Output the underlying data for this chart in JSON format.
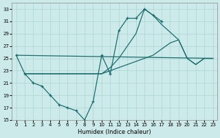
{
  "xlabel": "Humidex (Indice chaleur)",
  "bg_color": "#cceaea",
  "grid_color": "#aad4d4",
  "line_color": "#1a6b6b",
  "xlim": [
    -0.5,
    23.5
  ],
  "ylim": [
    15,
    34
  ],
  "yticks": [
    15,
    17,
    19,
    21,
    23,
    25,
    27,
    29,
    31,
    33
  ],
  "xticks": [
    0,
    1,
    2,
    3,
    4,
    5,
    6,
    7,
    8,
    9,
    10,
    11,
    12,
    13,
    14,
    15,
    16,
    17,
    18,
    19,
    20,
    21,
    22,
    23
  ],
  "line1_x": [
    0,
    1,
    2,
    3,
    4,
    5,
    6,
    7,
    8,
    9,
    10,
    11,
    12,
    13,
    14,
    15,
    16,
    17
  ],
  "line1_y": [
    25.5,
    22.5,
    21.0,
    20.5,
    19.0,
    17.5,
    17.0,
    16.5,
    15.0,
    18.0,
    25.5,
    22.5,
    29.5,
    31.5,
    31.5,
    33.0,
    32.0,
    31.0
  ],
  "line2_x": [
    0,
    23
  ],
  "line2_y": [
    25.5,
    25.0
  ],
  "line3_x": [
    1,
    10,
    11,
    12,
    13,
    14,
    15,
    16,
    17,
    18,
    19,
    20,
    21,
    22,
    23
  ],
  "line3_y": [
    22.5,
    22.5,
    23.0,
    23.5,
    24.0,
    24.5,
    25.0,
    25.5,
    26.5,
    27.5,
    28.0,
    25.0,
    24.0,
    25.0,
    25.0
  ],
  "line4_x": [
    1,
    10,
    11,
    12,
    13,
    14,
    15,
    16,
    17,
    19,
    20,
    21,
    22,
    23
  ],
  "line4_y": [
    22.5,
    22.5,
    23.5,
    25.0,
    27.0,
    29.0,
    33.0,
    32.0,
    30.5,
    28.0,
    25.0,
    24.0,
    25.0,
    25.0
  ]
}
